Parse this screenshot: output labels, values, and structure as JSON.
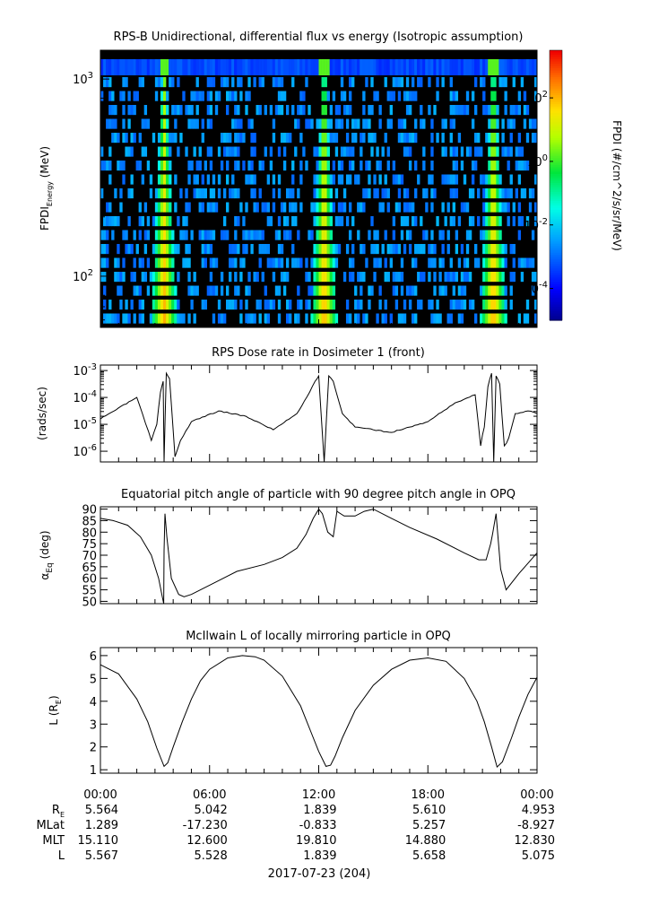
{
  "chart_data": [
    {
      "type": "heatmap",
      "title": "RPS-B  Unidirectional, differential flux vs energy (Isotropic assumption)",
      "ylabel_main": "FPDI",
      "ylabel_sub": "Energy",
      "ylabel_units": " (MeV)",
      "yscale": "log",
      "ylim": [
        55,
        1400
      ],
      "yticks": [
        {
          "exp": "3",
          "value": 1000
        },
        {
          "exp": "2",
          "value": 100
        }
      ],
      "energy_channels": 18,
      "time_peaks_hours": [
        3.5,
        12.3,
        21.6
      ],
      "colorbar": {
        "label": "FPDI (#/cm^2/s/sr/MeV)",
        "log_range": [
          -5,
          3.5
        ],
        "ticks": [
          {
            "exp": "2",
            "log": 2
          },
          {
            "exp": "0",
            "log": 0
          },
          {
            "exp": "-2",
            "log": -2
          },
          {
            "exp": "-4",
            "log": -4
          }
        ]
      }
    },
    {
      "type": "line",
      "title": "RPS  Dose rate in Dosimeter 1 (front)",
      "ylabel": "(rads/sec)",
      "yscale": "log",
      "ylim": [
        4e-07,
        0.0016
      ],
      "yticks": [
        {
          "exp": "-3",
          "value": 0.001
        },
        {
          "exp": "-4",
          "value": 0.0001
        },
        {
          "exp": "-5",
          "value": 1e-05
        },
        {
          "exp": "-6",
          "value": 1e-06
        }
      ],
      "x_hours": [
        0,
        2.0,
        2.8,
        3.1,
        3.3,
        3.45,
        3.5,
        3.62,
        3.8,
        4.1,
        4.4,
        5.0,
        6.5,
        8.0,
        9.5,
        10.8,
        11.5,
        11.8,
        12.0,
        12.3,
        12.55,
        12.8,
        13.3,
        14.0,
        16.0,
        18.0,
        19.5,
        20.6,
        20.9,
        21.1,
        21.3,
        21.5,
        21.62,
        21.75,
        21.95,
        22.2,
        22.45,
        22.8,
        23.5,
        24
      ],
      "y_log10": [
        -4.8,
        -4.0,
        -5.6,
        -5.0,
        -3.8,
        -3.4,
        -6.7,
        -3.1,
        -3.3,
        -6.2,
        -5.6,
        -4.9,
        -4.5,
        -4.7,
        -5.2,
        -4.6,
        -3.8,
        -3.4,
        -3.2,
        -6.7,
        -3.2,
        -3.4,
        -4.6,
        -5.1,
        -5.3,
        -4.9,
        -4.2,
        -3.9,
        -5.8,
        -5.1,
        -3.6,
        -3.1,
        -6.7,
        -3.2,
        -3.5,
        -5.8,
        -5.5,
        -4.6,
        -4.5,
        -4.6
      ]
    },
    {
      "type": "line",
      "title": "Equatorial pitch angle of particle with 90 degree pitch angle in OPQ",
      "ylabel_main": "α",
      "ylabel_sub": "Eq",
      "ylabel_units": " (deg)",
      "ylim": [
        49,
        91
      ],
      "yticks": [
        90,
        85,
        80,
        75,
        70,
        65,
        60,
        55,
        50
      ],
      "x_hours": [
        0,
        0.7,
        1.5,
        2.2,
        2.8,
        3.2,
        3.4,
        3.48,
        3.5,
        3.55,
        3.65,
        3.9,
        4.3,
        4.6,
        5.0,
        6.0,
        7.5,
        9.0,
        10.0,
        10.8,
        11.3,
        11.7,
        12.0,
        12.2,
        12.5,
        12.8,
        13.0,
        13.4,
        14.0,
        14.5,
        15.0,
        16.0,
        17.0,
        18.5,
        20.0,
        20.8,
        21.2,
        21.45,
        21.55,
        21.75,
        22.0,
        22.3,
        23.0,
        24
      ],
      "values": [
        86,
        85,
        83,
        78,
        70,
        60,
        52,
        49,
        72,
        88,
        78,
        60,
        53,
        52,
        53,
        57,
        63,
        66,
        69,
        73,
        79,
        86,
        90,
        88,
        80,
        78,
        89,
        87,
        87,
        89,
        90,
        86,
        82,
        77,
        71,
        68,
        68,
        75,
        79,
        88,
        64,
        55,
        62,
        71
      ]
    },
    {
      "type": "line",
      "title": "McIlwain L of locally mirroring particle in OPQ",
      "ylabel_main": "L (R",
      "ylabel_sub": "E",
      "ylabel_units": ")",
      "ylim": [
        0.85,
        6.35
      ],
      "yticks": [
        6,
        5,
        4,
        3,
        2,
        1
      ],
      "x_hours": [
        0,
        1.0,
        2.0,
        2.6,
        3.1,
        3.5,
        3.7,
        4.0,
        4.5,
        5.0,
        5.5,
        6.0,
        7.0,
        7.8,
        8.5,
        9.0,
        10.0,
        11.0,
        11.6,
        12.0,
        12.4,
        12.65,
        12.9,
        13.3,
        14.0,
        15.0,
        16.0,
        17.0,
        18.0,
        19.0,
        20.0,
        20.7,
        21.1,
        21.5,
        21.8,
        22.1,
        22.6,
        23.0,
        23.5,
        24
      ],
      "values": [
        5.6,
        5.2,
        4.1,
        3.1,
        1.95,
        1.15,
        1.3,
        2.0,
        3.1,
        4.1,
        4.9,
        5.4,
        5.9,
        6.0,
        5.95,
        5.8,
        5.1,
        3.8,
        2.6,
        1.8,
        1.15,
        1.2,
        1.6,
        2.4,
        3.6,
        4.7,
        5.4,
        5.8,
        5.9,
        5.75,
        5.0,
        4.0,
        3.1,
        2.0,
        1.12,
        1.35,
        2.4,
        3.3,
        4.3,
        5.05
      ]
    }
  ],
  "time_axis": {
    "tick_labels": [
      "00:00",
      "06:00",
      "12:00",
      "18:00",
      "00:00"
    ],
    "date_label": "2017-07-23 (204)"
  },
  "ephemeris": [
    {
      "label": "R",
      "sub": "E",
      "values": [
        "5.564",
        "5.042",
        "1.839",
        "5.610",
        "4.953"
      ]
    },
    {
      "label": "MLat",
      "sub": "",
      "values": [
        "1.289",
        "-17.230",
        "-0.833",
        "5.257",
        "-8.927"
      ]
    },
    {
      "label": "MLT",
      "sub": "",
      "values": [
        "15.110",
        "12.600",
        "19.810",
        "14.880",
        "12.830"
      ]
    },
    {
      "label": "L",
      "sub": "",
      "values": [
        "5.567",
        "5.528",
        "1.839",
        "5.658",
        "5.075"
      ]
    }
  ]
}
